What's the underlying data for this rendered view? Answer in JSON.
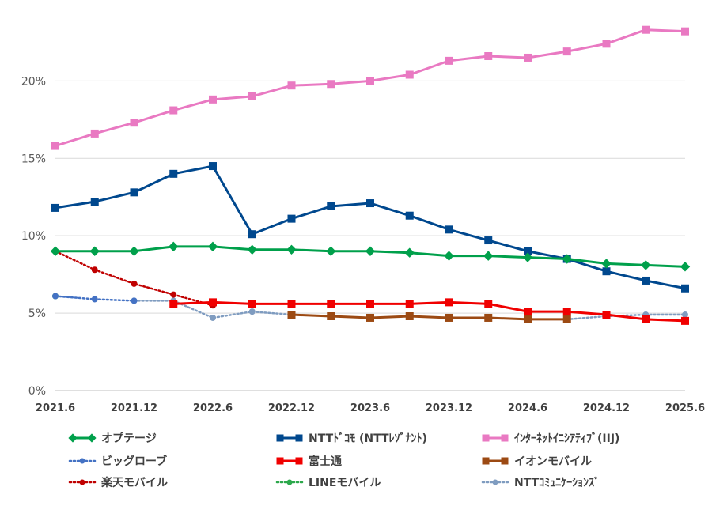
{
  "chart_data": {
    "type": "line",
    "title": "",
    "xlabel": "",
    "ylabel": "",
    "ylim": [
      0,
      24
    ],
    "y_ticks": [
      "0%",
      "5%",
      "10%",
      "15%",
      "20%"
    ],
    "y_tick_values": [
      0,
      5,
      10,
      15,
      20
    ],
    "grid": "horizontal",
    "legend_position": "bottom",
    "categories": [
      "2021.6",
      "2021.9",
      "2021.12",
      "2022.3",
      "2022.6",
      "2022.9",
      "2022.12",
      "2023.3",
      "2023.6",
      "2023.9",
      "2023.12",
      "2024.3",
      "2024.6",
      "2024.9",
      "2024.12",
      "2025.3",
      "2025.6"
    ],
    "x_tick_labels": [
      "2021.6",
      "2021.12",
      "2022.6",
      "2022.12",
      "2023.6",
      "2023.12",
      "2024.6",
      "2024.12",
      "2025.6"
    ],
    "x_tick_index": [
      0,
      2,
      4,
      6,
      8,
      10,
      12,
      14,
      16
    ],
    "series": [
      {
        "name": "オプテージ",
        "color": "#00A04B",
        "style": "solid",
        "marker": "diamond",
        "values": [
          9.0,
          9.0,
          9.0,
          9.3,
          9.3,
          9.1,
          9.1,
          9.0,
          9.0,
          8.9,
          8.7,
          8.7,
          8.6,
          8.5,
          8.2,
          8.1,
          8.0
        ]
      },
      {
        "name": "NTTﾄﾞｺﾓ (NTTﾚｿﾞﾅﾝﾄ)",
        "color": "#00488E",
        "style": "solid",
        "marker": "square",
        "values": [
          11.8,
          12.2,
          12.8,
          14.0,
          14.5,
          10.1,
          11.1,
          11.9,
          12.1,
          11.3,
          10.4,
          9.7,
          9.0,
          8.5,
          7.7,
          7.1,
          6.6
        ]
      },
      {
        "name": "ｲﾝﾀｰﾈｯﾄｲﾆｼｱﾃｨﾌﾞ(IIJ)",
        "color": "#E979C2",
        "style": "solid",
        "marker": "square",
        "values": [
          15.8,
          16.6,
          17.3,
          18.1,
          18.8,
          19.0,
          19.7,
          19.8,
          20.0,
          20.4,
          21.3,
          21.6,
          21.5,
          21.9,
          22.4,
          23.3,
          23.2
        ]
      },
      {
        "name": "ビッグローブ",
        "color": "#4472C4",
        "style": "dotted",
        "marker": "circle",
        "values": [
          6.1,
          5.9,
          5.8,
          null,
          null,
          null,
          null,
          null,
          null,
          null,
          null,
          null,
          null,
          null,
          null,
          null,
          null
        ]
      },
      {
        "name": "富士通",
        "color": "#F00000",
        "style": "solid",
        "marker": "square",
        "values": [
          null,
          null,
          null,
          5.6,
          5.7,
          5.6,
          5.6,
          5.6,
          5.6,
          5.6,
          5.7,
          5.6,
          5.1,
          5.1,
          4.9,
          4.6,
          4.5
        ]
      },
      {
        "name": "イオンモバイル",
        "color": "#9C4A13",
        "style": "solid",
        "marker": "square",
        "values": [
          null,
          null,
          null,
          null,
          null,
          null,
          4.9,
          4.8,
          4.7,
          4.8,
          4.7,
          4.7,
          4.6,
          4.6,
          null,
          null,
          null
        ]
      },
      {
        "name": "楽天モバイル",
        "color": "#C00000",
        "style": "dotted",
        "marker": "circle",
        "values": [
          9.0,
          7.8,
          6.9,
          6.2,
          5.5,
          null,
          null,
          null,
          null,
          null,
          null,
          null,
          null,
          null,
          null,
          null,
          null
        ]
      },
      {
        "name": "LINEモバイル",
        "color": "#2CA84B",
        "style": "dotted",
        "marker": "circle",
        "values": [
          6.1,
          null,
          null,
          null,
          null,
          null,
          null,
          null,
          null,
          null,
          null,
          null,
          null,
          null,
          null,
          null,
          null
        ]
      },
      {
        "name": "NTTｺﾐｭﾆｹｰｼｮﾝｽﾞ",
        "color": "#7F9CC0",
        "style": "dotted",
        "marker": "circle",
        "values": [
          null,
          null,
          5.8,
          5.8,
          4.7,
          5.1,
          4.9,
          null,
          null,
          null,
          null,
          null,
          null,
          4.6,
          4.8,
          4.9,
          4.9
        ]
      }
    ]
  }
}
